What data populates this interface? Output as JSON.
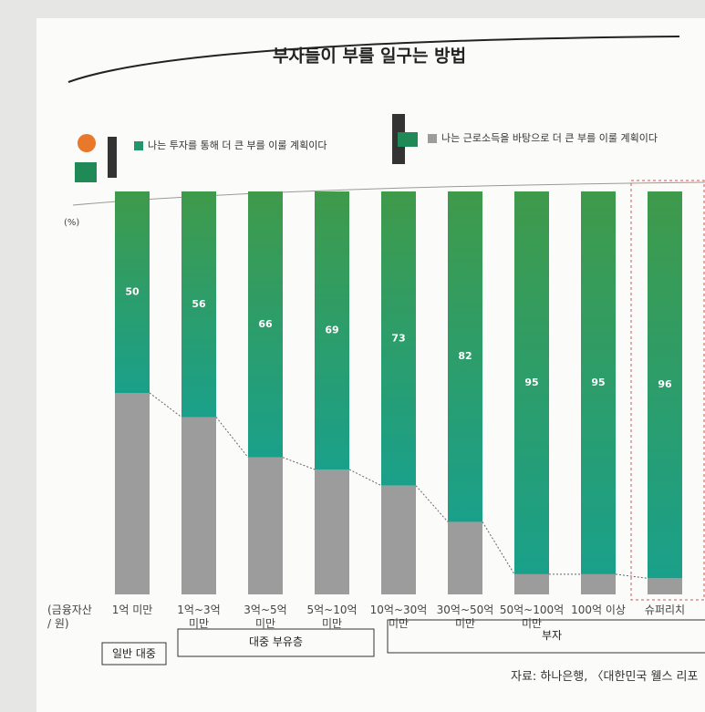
{
  "chart_data": {
    "type": "stacked-bar",
    "title": "부자들이 부를 일구는 방법",
    "y_unit": "(%)",
    "x_label": "(금융자산\n/ 원)",
    "categories": [
      "1억 미만",
      "1억~3억\n미만",
      "3억~5억\n미만",
      "5억~10억\n미만",
      "10억~30억\n미만",
      "30억~50억\n미만",
      "50억~100억\n미만",
      "100억 이상",
      "슈퍼리치"
    ],
    "series": [
      {
        "name": "나는 투자를 통해 더 큰 부를 이룰 계획이다",
        "color": "#23956a",
        "values": [
          50,
          56,
          66,
          69,
          73,
          82,
          95,
          95,
          96
        ],
        "data_labels": true
      },
      {
        "name": "나는 근로소득을 바탕으로 더 큰 부를 이룰 계획이다",
        "color": "#9c9c9c",
        "values": [
          50,
          44,
          34,
          31,
          27,
          18,
          5,
          5,
          4
        ],
        "data_labels": false
      }
    ],
    "ylim": [
      0,
      100
    ],
    "groups": [
      "일반 대중",
      "대중 부유층",
      "부자"
    ],
    "source": "자료: 하나은행, 〈대한민국 웰스 리포"
  }
}
